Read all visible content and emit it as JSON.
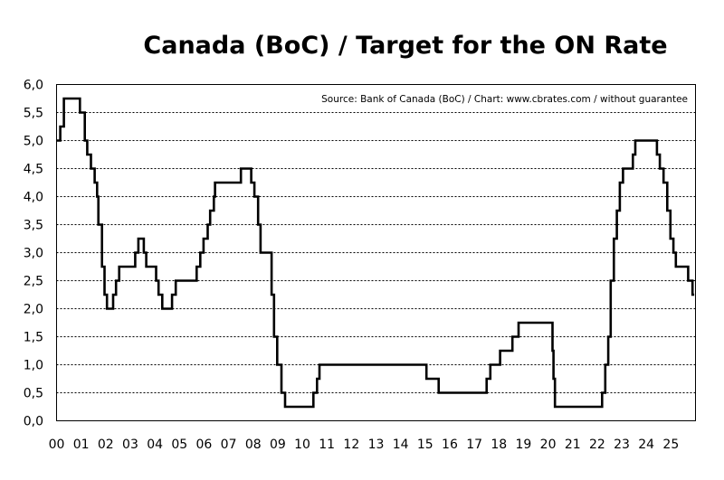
{
  "chart_data": {
    "type": "line",
    "step": true,
    "title": "Canada (BoC) / Target for the ON Rate",
    "source": "Source: Bank of Canada (BoC) / Chart: www.cbrates.com / without guarantee",
    "xlabel": "",
    "ylabel": "",
    "xlim": [
      2000,
      2026
    ],
    "ylim": [
      0,
      6
    ],
    "grid": "horizontal-dashed",
    "x_tick_labels": [
      "00",
      "01",
      "02",
      "03",
      "04",
      "05",
      "06",
      "07",
      "08",
      "09",
      "10",
      "11",
      "12",
      "13",
      "14",
      "15",
      "16",
      "17",
      "18",
      "19",
      "20",
      "21",
      "22",
      "23",
      "24",
      "25"
    ],
    "y_tick_labels": [
      "0,0",
      "0,5",
      "1,0",
      "1,5",
      "2,0",
      "2,5",
      "3,0",
      "3,5",
      "4,0",
      "4,5",
      "5,0",
      "5,5",
      "6,0"
    ],
    "series": [
      {
        "color": "#000000",
        "points": [
          [
            2000.0,
            5.0
          ],
          [
            2000.15,
            5.25
          ],
          [
            2000.3,
            5.75
          ],
          [
            2000.95,
            5.5
          ],
          [
            2001.15,
            5.0
          ],
          [
            2001.25,
            4.75
          ],
          [
            2001.4,
            4.5
          ],
          [
            2001.55,
            4.25
          ],
          [
            2001.65,
            4.0
          ],
          [
            2001.7,
            3.5
          ],
          [
            2001.85,
            2.75
          ],
          [
            2001.95,
            2.25
          ],
          [
            2002.05,
            2.0
          ],
          [
            2002.3,
            2.25
          ],
          [
            2002.42,
            2.5
          ],
          [
            2002.55,
            2.75
          ],
          [
            2003.2,
            3.0
          ],
          [
            2003.33,
            3.25
          ],
          [
            2003.55,
            3.0
          ],
          [
            2003.65,
            2.75
          ],
          [
            2004.05,
            2.5
          ],
          [
            2004.15,
            2.25
          ],
          [
            2004.3,
            2.0
          ],
          [
            2004.7,
            2.25
          ],
          [
            2004.85,
            2.5
          ],
          [
            2005.7,
            2.75
          ],
          [
            2005.85,
            3.0
          ],
          [
            2005.98,
            3.25
          ],
          [
            2006.15,
            3.5
          ],
          [
            2006.25,
            3.75
          ],
          [
            2006.4,
            4.0
          ],
          [
            2006.45,
            4.25
          ],
          [
            2007.5,
            4.5
          ],
          [
            2007.92,
            4.25
          ],
          [
            2008.05,
            4.0
          ],
          [
            2008.2,
            3.5
          ],
          [
            2008.3,
            3.0
          ],
          [
            2008.75,
            2.25
          ],
          [
            2008.85,
            1.5
          ],
          [
            2008.98,
            1.0
          ],
          [
            2009.15,
            0.5
          ],
          [
            2009.3,
            0.25
          ],
          [
            2010.45,
            0.5
          ],
          [
            2010.6,
            0.75
          ],
          [
            2010.7,
            1.0
          ],
          [
            2015.05,
            0.75
          ],
          [
            2015.55,
            0.5
          ],
          [
            2017.5,
            0.75
          ],
          [
            2017.65,
            1.0
          ],
          [
            2018.05,
            1.25
          ],
          [
            2018.55,
            1.5
          ],
          [
            2018.8,
            1.75
          ],
          [
            2020.18,
            1.25
          ],
          [
            2020.22,
            0.75
          ],
          [
            2020.28,
            0.25
          ],
          [
            2022.2,
            0.5
          ],
          [
            2022.33,
            1.0
          ],
          [
            2022.45,
            1.5
          ],
          [
            2022.55,
            2.5
          ],
          [
            2022.68,
            3.25
          ],
          [
            2022.8,
            3.75
          ],
          [
            2022.92,
            4.25
          ],
          [
            2023.05,
            4.5
          ],
          [
            2023.45,
            4.75
          ],
          [
            2023.55,
            5.0
          ],
          [
            2024.43,
            4.75
          ],
          [
            2024.55,
            4.5
          ],
          [
            2024.7,
            4.25
          ],
          [
            2024.85,
            3.75
          ],
          [
            2024.98,
            3.25
          ],
          [
            2025.1,
            3.0
          ],
          [
            2025.2,
            2.75
          ],
          [
            2025.7,
            2.5
          ],
          [
            2025.88,
            2.25
          ],
          [
            2025.95,
            2.25
          ]
        ]
      }
    ]
  }
}
